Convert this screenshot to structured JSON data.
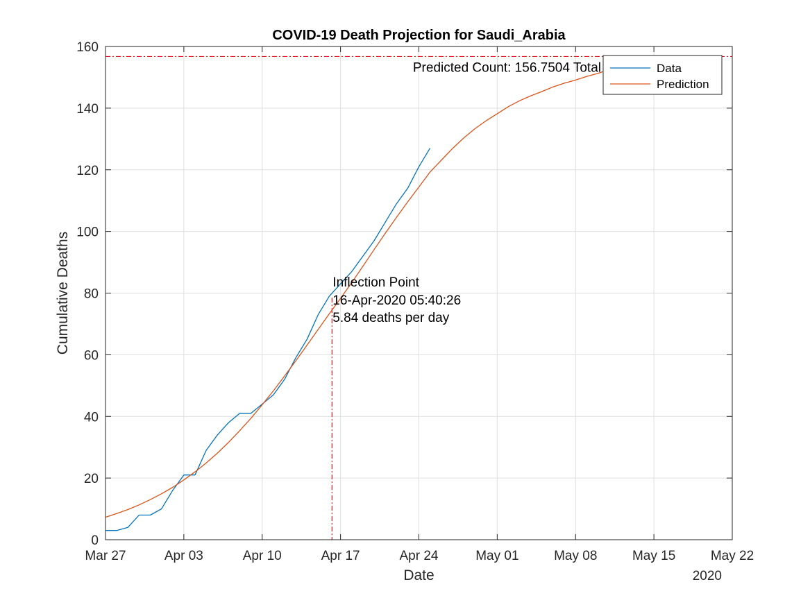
{
  "chart_data": {
    "type": "line",
    "title": "COVID-19 Death Projection for Saudi_Arabia",
    "xlabel": "Date",
    "ylabel": "Cumulative Deaths",
    "x_axis_year": "2020",
    "xlim": [
      "2020-03-27",
      "2020-05-22"
    ],
    "ylim": [
      0,
      160
    ],
    "x_ticks": [
      "Mar 27",
      "Apr 03",
      "Apr 10",
      "Apr 17",
      "Apr 24",
      "May 01",
      "May 08",
      "May 15",
      "May 22"
    ],
    "x_tick_dates": [
      "2020-03-27",
      "2020-04-03",
      "2020-04-10",
      "2020-04-17",
      "2020-04-24",
      "2020-05-01",
      "2020-05-08",
      "2020-05-15",
      "2020-05-22"
    ],
    "y_ticks": [
      0,
      20,
      40,
      60,
      80,
      100,
      120,
      140,
      160
    ],
    "grid": true,
    "legend_position": "top-right",
    "series": [
      {
        "name": "Data",
        "color": "#0072BD",
        "x": [
          "2020-03-27",
          "2020-03-28",
          "2020-03-29",
          "2020-03-30",
          "2020-03-31",
          "2020-04-01",
          "2020-04-02",
          "2020-04-03",
          "2020-04-04",
          "2020-04-05",
          "2020-04-06",
          "2020-04-07",
          "2020-04-08",
          "2020-04-09",
          "2020-04-10",
          "2020-04-11",
          "2020-04-12",
          "2020-04-13",
          "2020-04-14",
          "2020-04-15",
          "2020-04-16",
          "2020-04-17",
          "2020-04-18",
          "2020-04-19",
          "2020-04-20",
          "2020-04-21",
          "2020-04-22",
          "2020-04-23",
          "2020-04-24",
          "2020-04-25"
        ],
        "y": [
          3,
          3,
          4,
          8,
          8,
          10,
          16,
          21,
          21,
          29,
          34,
          38,
          41,
          41,
          44,
          47,
          52,
          59,
          65,
          73,
          79,
          83,
          87,
          92,
          97,
          103,
          109,
          114,
          121,
          127
        ]
      },
      {
        "name": "Prediction",
        "color": "#D95319",
        "x": [
          "2020-03-27",
          "2020-03-28",
          "2020-03-29",
          "2020-03-30",
          "2020-03-31",
          "2020-04-01",
          "2020-04-02",
          "2020-04-03",
          "2020-04-04",
          "2020-04-05",
          "2020-04-06",
          "2020-04-07",
          "2020-04-08",
          "2020-04-09",
          "2020-04-10",
          "2020-04-11",
          "2020-04-12",
          "2020-04-13",
          "2020-04-14",
          "2020-04-15",
          "2020-04-16",
          "2020-04-17",
          "2020-04-18",
          "2020-04-19",
          "2020-04-20",
          "2020-04-21",
          "2020-04-22",
          "2020-04-23",
          "2020-04-24",
          "2020-04-25",
          "2020-04-26",
          "2020-04-27",
          "2020-04-28",
          "2020-04-29",
          "2020-04-30",
          "2020-05-01",
          "2020-05-02",
          "2020-05-03",
          "2020-05-04",
          "2020-05-05",
          "2020-05-06",
          "2020-05-07",
          "2020-05-08",
          "2020-05-09",
          "2020-05-10",
          "2020-05-11"
        ],
        "y": [
          7.3,
          8.5,
          9.8,
          11.3,
          13.0,
          14.9,
          17.0,
          19.4,
          22.0,
          24.9,
          28.1,
          31.6,
          35.4,
          39.4,
          43.8,
          48.3,
          53.1,
          58.0,
          63.1,
          68.2,
          73.3,
          78.3,
          83.4,
          88.7,
          94.1,
          99.4,
          104.6,
          109.6,
          114.4,
          119.3,
          123.1,
          126.9,
          130.3,
          133.3,
          135.9,
          138.2,
          140.5,
          142.4,
          144.0,
          145.4,
          146.9,
          148.1,
          149.1,
          150.3,
          151.3,
          152.5
        ]
      }
    ],
    "annotations": {
      "predicted_total_value": 156.7504,
      "predicted_total_label": "Predicted Count: 156.7504 Total",
      "inflection_date": "2020-04-16T05:40:26",
      "inflection_lines": [
        "Inflection Point",
        "16-Apr-2020 05:40:26",
        "5.84 deaths per day"
      ]
    }
  }
}
